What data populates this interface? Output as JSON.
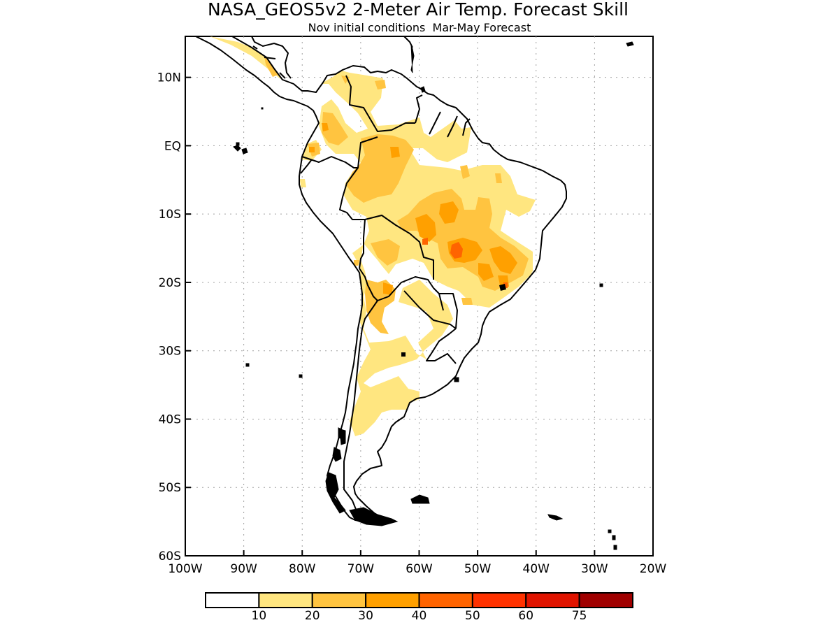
{
  "title": "NASA_GEOS5v2 2-Meter Air Temp. Forecast Skill",
  "subtitle": "Nov initial conditions  Mar-May Forecast",
  "axes": {
    "lon_ticks": [
      "100W",
      "90W",
      "80W",
      "70W",
      "60W",
      "50W",
      "40W",
      "30W",
      "20W"
    ],
    "lat_ticks": [
      "10N",
      "EQ",
      "10S",
      "20S",
      "30S",
      "40S",
      "50S",
      "60S"
    ],
    "lon_range": [
      -100,
      -20
    ],
    "lat_range": [
      -60,
      16
    ],
    "grid": "dotted"
  },
  "colorbar": {
    "labels": [
      "10",
      "20",
      "30",
      "40",
      "50",
      "60",
      "75"
    ],
    "colors": [
      "#ffffff",
      "#ffe680",
      "#ffc440",
      "#ffa000",
      "#ff6400",
      "#ff3200",
      "#e01400",
      "#a00000"
    ]
  },
  "skill_colors": {
    "c10": "#ffe680",
    "c20": "#ffc440",
    "c30": "#ffa000",
    "c40": "#ff6400"
  }
}
